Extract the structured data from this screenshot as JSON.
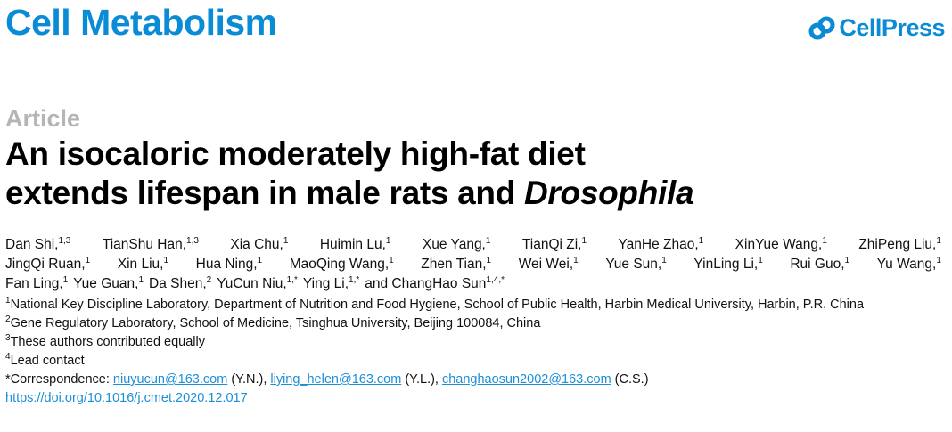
{
  "header": {
    "journal": "Cell Metabolism",
    "publisher": "CellPress"
  },
  "article_type": "Article",
  "title": {
    "line1": "An isocaloric moderately high-fat diet",
    "line2": "extends lifespan in male rats and ",
    "italic": "Drosophila"
  },
  "authors": [
    [
      {
        "name": "Dan Shi,",
        "sup": "1,3"
      },
      {
        "name": "TianShu Han,",
        "sup": "1,3"
      },
      {
        "name": "Xia Chu,",
        "sup": "1"
      },
      {
        "name": "Huimin Lu,",
        "sup": "1"
      },
      {
        "name": "Xue Yang,",
        "sup": "1"
      },
      {
        "name": "TianQi Zi,",
        "sup": "1"
      },
      {
        "name": "YanHe Zhao,",
        "sup": "1"
      },
      {
        "name": "XinYue Wang,",
        "sup": "1"
      },
      {
        "name": "ZhiPeng Liu,",
        "sup": "1"
      }
    ],
    [
      {
        "name": "JingQi Ruan,",
        "sup": "1"
      },
      {
        "name": "Xin Liu,",
        "sup": "1"
      },
      {
        "name": "Hua Ning,",
        "sup": "1"
      },
      {
        "name": "MaoQing Wang,",
        "sup": "1"
      },
      {
        "name": "Zhen Tian,",
        "sup": "1"
      },
      {
        "name": "Wei Wei,",
        "sup": "1"
      },
      {
        "name": "Yue Sun,",
        "sup": "1"
      },
      {
        "name": "YinLing Li,",
        "sup": "1"
      },
      {
        "name": "Rui Guo,",
        "sup": "1"
      },
      {
        "name": "Yu Wang,",
        "sup": "1"
      }
    ],
    [
      {
        "name": "Fan Ling,",
        "sup": "1"
      },
      {
        "name": "Yue Guan,",
        "sup": "1"
      },
      {
        "name": "Da Shen,",
        "sup": "2"
      },
      {
        "name": "YuCun Niu,",
        "sup": "1,*"
      },
      {
        "name": "Ying Li,",
        "sup": "1,*"
      },
      {
        "name": "and ChangHao Sun",
        "sup": "1,4,*"
      }
    ]
  ],
  "affiliations": [
    {
      "sup": "1",
      "text": "National Key Discipline Laboratory, Department of Nutrition and Food Hygiene, School of Public Health, Harbin Medical University, Harbin, P.R. China"
    },
    {
      "sup": "2",
      "text": "Gene Regulatory Laboratory, School of Medicine, Tsinghua University, Beijing 100084, China"
    },
    {
      "sup": "3",
      "text": "These authors contributed equally"
    },
    {
      "sup": "4",
      "text": "Lead contact"
    }
  ],
  "correspondence": {
    "label": "*Correspondence: ",
    "contacts": [
      {
        "email": "niuyucun@163.com",
        "initials": " (Y.N.), "
      },
      {
        "email": "liying_helen@163.com",
        "initials": " (Y.L.), "
      },
      {
        "email": "changhaosun2002@163.com",
        "initials": " (C.S.)"
      }
    ]
  },
  "doi": "https://doi.org/10.1016/j.cmet.2020.12.017"
}
